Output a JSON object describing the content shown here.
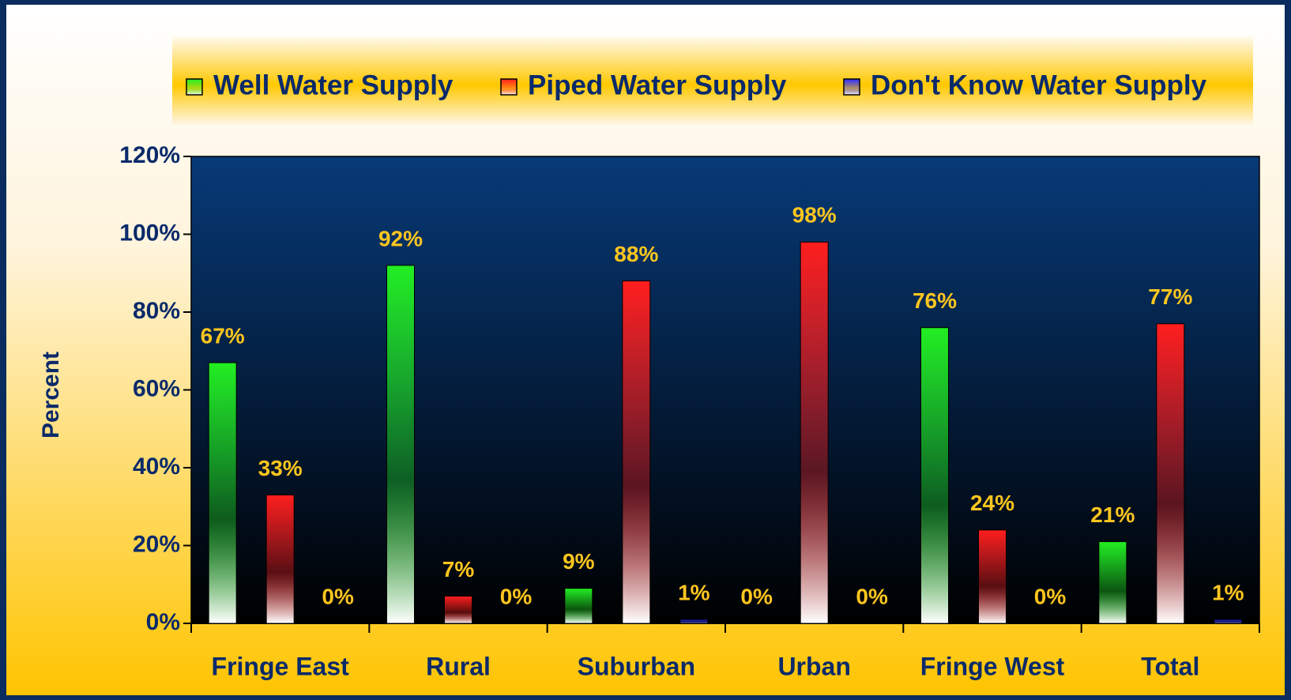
{
  "chart_data": {
    "type": "bar",
    "y_axis_label": "Percent",
    "categories": [
      "Fringe East",
      "Rural",
      "Suburban",
      "Urban",
      "Fringe West",
      "Total"
    ],
    "series": [
      {
        "name": "Well Water Supply",
        "color": "#22ee22",
        "values": [
          67,
          92,
          9,
          0,
          76,
          21
        ],
        "value_labels": [
          "67%",
          "92%",
          "9%",
          "0%",
          "76%",
          "21%"
        ]
      },
      {
        "name": "Piped Water Supply",
        "color": "#ff1e1e",
        "values": [
          33,
          7,
          88,
          98,
          24,
          77
        ],
        "value_labels": [
          "33%",
          "7%",
          "88%",
          "98%",
          "24%",
          "77%"
        ]
      },
      {
        "name": "Don't Know Water Supply",
        "color": "#2a2aff",
        "values": [
          0,
          0,
          1,
          0,
          0,
          1
        ],
        "value_labels": [
          "0%",
          "0%",
          "1%",
          "0%",
          "0%",
          "1%"
        ]
      }
    ],
    "ylim": [
      0,
      120
    ],
    "yticks": [
      {
        "value": 0,
        "label": "0%"
      },
      {
        "value": 20,
        "label": "20%"
      },
      {
        "value": 40,
        "label": "40%"
      },
      {
        "value": 60,
        "label": "60%"
      },
      {
        "value": 80,
        "label": "80%"
      },
      {
        "value": 100,
        "label": "100%"
      },
      {
        "value": 120,
        "label": "120%"
      }
    ],
    "legend": "top"
  }
}
